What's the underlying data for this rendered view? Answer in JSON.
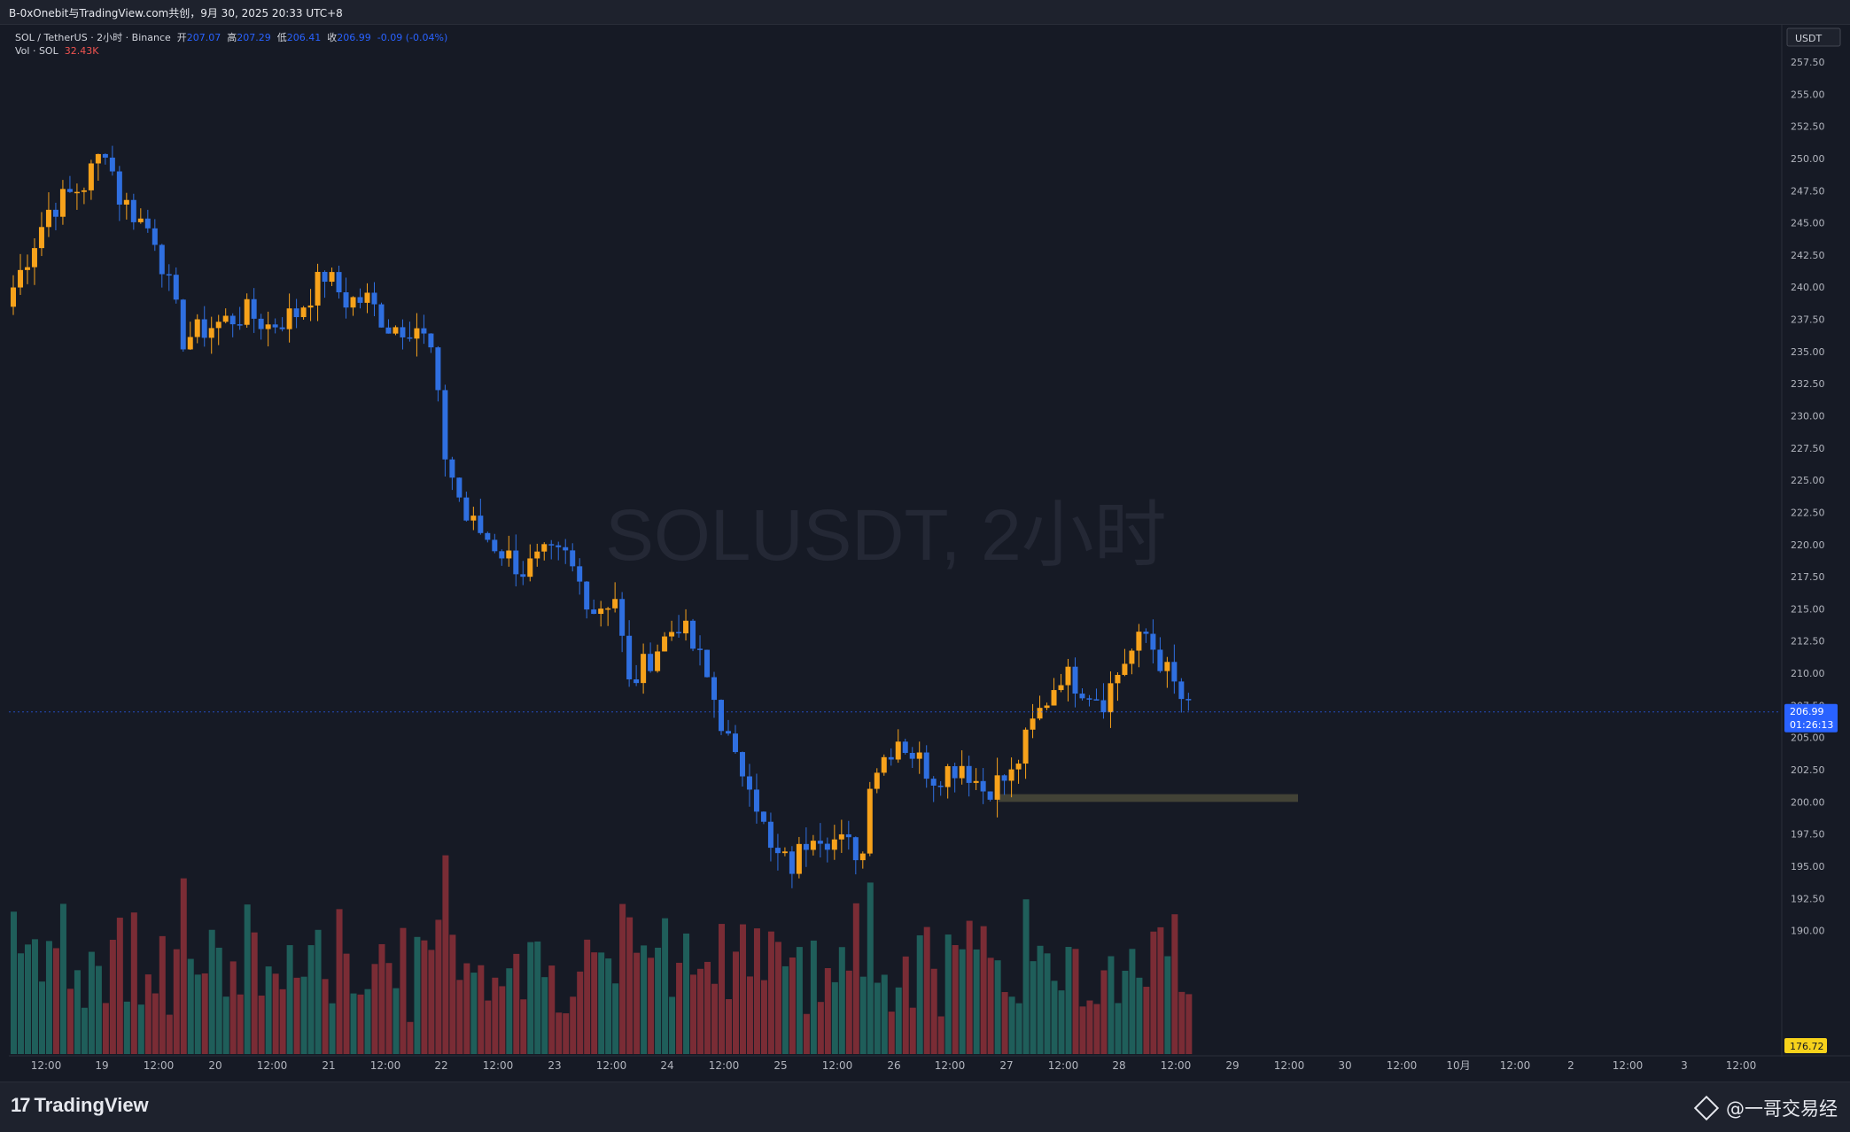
{
  "header": {
    "share_text": "B-0xOnebit与TradingView.com共创，9月 30, 2025 20:33 UTC+8"
  },
  "legend": {
    "symbol": "SOL / TetherUS · 2小时 · Binance",
    "open_label": "开",
    "open": "207.07",
    "high_label": "高",
    "high": "207.29",
    "low_label": "低",
    "low": "206.41",
    "close_label": "收",
    "close": "206.99",
    "change": "-0.09 (-0.04%)",
    "vol_label": "Vol · SOL",
    "vol_value": "32.43K"
  },
  "watermark": "SOLUSDT, 2小时",
  "price_axis": {
    "currency": "USDT",
    "current_price": "206.99",
    "countdown": "01:26:13",
    "volume_tag": "176.72"
  },
  "footer": {
    "logo_text": "TradingView",
    "credit": "@一哥交易经"
  },
  "colors": {
    "up": "#f7a21b",
    "down": "#2f6fe0",
    "vol_up": "#1f5e5a",
    "vol_down": "#7a2c35",
    "background": "#161a25",
    "support_zone": "#4a4a3a"
  },
  "chart_data": {
    "type": "candlestick",
    "interval": "2小时",
    "y_range": [
      190,
      257.5
    ],
    "y_ticks": [
      190,
      192.5,
      195,
      197.5,
      200,
      202.5,
      205,
      207.5,
      210,
      212.5,
      215,
      217.5,
      220,
      222.5,
      225,
      227.5,
      230,
      232.5,
      235,
      237.5,
      240,
      242.5,
      245,
      247.5,
      250,
      252.5,
      255,
      257.5
    ],
    "x_labels": [
      "12:00",
      "19",
      "12:00",
      "20",
      "12:00",
      "21",
      "12:00",
      "22",
      "12:00",
      "23",
      "12:00",
      "24",
      "12:00",
      "25",
      "12:00",
      "26",
      "12:00",
      "27",
      "12:00",
      "28",
      "12:00",
      "29",
      "12:00",
      "30",
      "12:00",
      "10月",
      "12:00",
      "2",
      "12:00",
      "3",
      "12:00"
    ],
    "support_zone": [
      200,
      200.6
    ],
    "waypoints": [
      [
        0,
        240
      ],
      [
        5,
        246
      ],
      [
        10,
        248
      ],
      [
        13,
        251
      ],
      [
        15,
        247
      ],
      [
        20,
        244
      ],
      [
        24,
        236
      ],
      [
        28,
        237
      ],
      [
        33,
        238
      ],
      [
        36,
        237
      ],
      [
        40,
        238
      ],
      [
        44,
        241
      ],
      [
        47,
        239
      ],
      [
        50,
        239
      ],
      [
        53,
        237
      ],
      [
        57,
        237
      ],
      [
        59,
        235
      ],
      [
        61,
        227
      ],
      [
        64,
        222
      ],
      [
        68,
        220
      ],
      [
        72,
        218
      ],
      [
        75,
        219
      ],
      [
        78,
        219
      ],
      [
        82,
        215
      ],
      [
        85,
        216
      ],
      [
        87,
        209
      ],
      [
        91,
        212
      ],
      [
        94,
        214
      ],
      [
        97,
        211
      ],
      [
        99,
        208
      ],
      [
        102,
        203
      ],
      [
        104,
        202
      ],
      [
        107,
        196
      ],
      [
        110,
        195
      ],
      [
        113,
        198
      ],
      [
        116,
        197
      ],
      [
        120,
        196
      ],
      [
        121,
        202
      ],
      [
        125,
        205
      ],
      [
        130,
        202
      ],
      [
        134,
        203
      ],
      [
        137,
        201
      ],
      [
        141,
        202
      ],
      [
        144,
        206
      ],
      [
        148,
        210
      ],
      [
        151,
        209
      ],
      [
        154,
        208
      ],
      [
        157,
        211
      ],
      [
        160,
        213
      ],
      [
        163,
        210
      ],
      [
        166,
        207
      ]
    ],
    "volume_range": [
      0,
      50
    ]
  }
}
